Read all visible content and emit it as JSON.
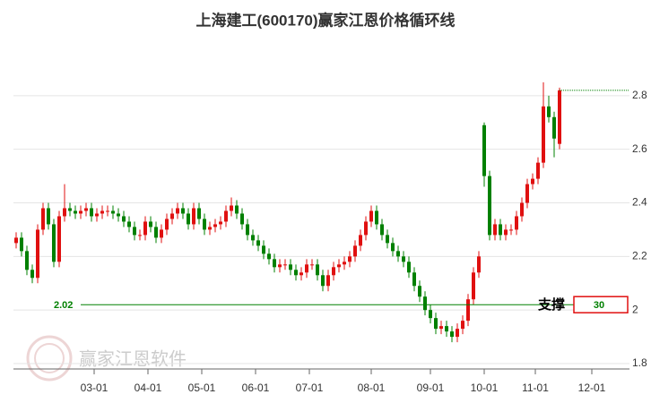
{
  "chart_data": {
    "type": "candlestick",
    "title": "上海建工(600170)赢家江恩价格循环线",
    "watermark": "赢家江恩软件",
    "ylim": [
      1.78,
      2.99
    ],
    "yticks": [
      1.8,
      2,
      2.2,
      2.4,
      2.6,
      2.8
    ],
    "xlim": [
      -0.5,
      113.5
    ],
    "xticks": [
      {
        "value": 14.5,
        "label": "03-01"
      },
      {
        "value": 24.5,
        "label": "04-01"
      },
      {
        "value": 34.5,
        "label": "05-01"
      },
      {
        "value": 44.5,
        "label": "06-01"
      },
      {
        "value": 54.5,
        "label": "07-01"
      },
      {
        "value": 66,
        "label": "08-01"
      },
      {
        "value": 77,
        "label": "09-01"
      },
      {
        "value": 87,
        "label": "10-01"
      },
      {
        "value": 96.5,
        "label": "11-01"
      },
      {
        "value": 107,
        "label": "12-01"
      }
    ],
    "grid": true,
    "up_color": "#e01010",
    "down_color": "#008000",
    "open": [
      2.25,
      2.27,
      2.22,
      2.15,
      2.12,
      2.3,
      2.38,
      2.32,
      2.18,
      2.35,
      2.38,
      2.37,
      2.36,
      2.37,
      2.38,
      2.35,
      2.36,
      2.37,
      2.37,
      2.36,
      2.35,
      2.33,
      2.31,
      2.28,
      2.28,
      2.33,
      2.31,
      2.27,
      2.3,
      2.34,
      2.36,
      2.38,
      2.36,
      2.32,
      2.38,
      2.34,
      2.3,
      2.31,
      2.32,
      2.33,
      2.37,
      2.39,
      2.36,
      2.32,
      2.28,
      2.26,
      2.24,
      2.21,
      2.19,
      2.16,
      2.17,
      2.17,
      2.15,
      2.13,
      2.14,
      2.17,
      2.17,
      2.13,
      2.09,
      2.13,
      2.16,
      2.17,
      2.18,
      2.2,
      2.24,
      2.28,
      2.33,
      2.37,
      2.32,
      2.28,
      2.25,
      2.22,
      2.2,
      2.18,
      2.14,
      2.09,
      2.05,
      2.0,
      1.97,
      1.93,
      1.94,
      1.92,
      1.9,
      1.93,
      1.96,
      2.04,
      2.14,
      2.69,
      2.5,
      2.28,
      2.32,
      2.28,
      2.3,
      2.3,
      2.35,
      2.4,
      2.47,
      2.49,
      2.55,
      2.76,
      2.72,
      2.62
    ],
    "high": [
      2.29,
      2.29,
      2.24,
      2.17,
      2.32,
      2.4,
      2.4,
      2.34,
      2.37,
      2.47,
      2.4,
      2.39,
      2.39,
      2.4,
      2.4,
      2.38,
      2.39,
      2.39,
      2.39,
      2.38,
      2.37,
      2.35,
      2.33,
      2.3,
      2.35,
      2.35,
      2.33,
      2.32,
      2.36,
      2.38,
      2.4,
      2.4,
      2.38,
      2.4,
      2.4,
      2.36,
      2.33,
      2.34,
      2.35,
      2.39,
      2.42,
      2.41,
      2.38,
      2.34,
      2.3,
      2.28,
      2.26,
      2.23,
      2.21,
      2.19,
      2.19,
      2.19,
      2.17,
      2.16,
      2.19,
      2.19,
      2.19,
      2.15,
      2.15,
      2.18,
      2.19,
      2.2,
      2.22,
      2.26,
      2.3,
      2.35,
      2.39,
      2.39,
      2.34,
      2.3,
      2.27,
      2.24,
      2.22,
      2.2,
      2.16,
      2.11,
      2.07,
      2.02,
      1.99,
      1.96,
      1.96,
      1.94,
      1.95,
      1.98,
      2.06,
      2.16,
      2.22,
      2.7,
      2.52,
      2.34,
      2.34,
      2.32,
      2.32,
      2.37,
      2.42,
      2.49,
      2.51,
      2.57,
      2.85,
      2.8,
      2.74,
      2.83
    ],
    "low": [
      2.23,
      2.2,
      2.13,
      2.1,
      2.1,
      2.28,
      2.3,
      2.16,
      2.16,
      2.33,
      2.35,
      2.34,
      2.34,
      2.35,
      2.33,
      2.33,
      2.34,
      2.35,
      2.34,
      2.33,
      2.31,
      2.29,
      2.26,
      2.26,
      2.26,
      2.29,
      2.25,
      2.25,
      2.28,
      2.32,
      2.34,
      2.34,
      2.3,
      2.3,
      2.32,
      2.28,
      2.28,
      2.29,
      2.3,
      2.31,
      2.35,
      2.34,
      2.3,
      2.26,
      2.24,
      2.22,
      2.19,
      2.17,
      2.14,
      2.14,
      2.15,
      2.13,
      2.11,
      2.11,
      2.12,
      2.15,
      2.11,
      2.07,
      2.07,
      2.11,
      2.14,
      2.15,
      2.16,
      2.18,
      2.22,
      2.26,
      2.31,
      2.3,
      2.26,
      2.23,
      2.2,
      2.18,
      2.16,
      2.12,
      2.07,
      2.03,
      1.98,
      1.95,
      1.91,
      1.91,
      1.9,
      1.88,
      1.88,
      1.91,
      1.94,
      2.02,
      2.12,
      2.46,
      2.26,
      2.26,
      2.26,
      2.26,
      2.28,
      2.28,
      2.33,
      2.38,
      2.45,
      2.47,
      2.53,
      2.7,
      2.57,
      2.6
    ],
    "close": [
      2.27,
      2.22,
      2.15,
      2.12,
      2.3,
      2.38,
      2.32,
      2.18,
      2.35,
      2.38,
      2.37,
      2.36,
      2.37,
      2.38,
      2.35,
      2.36,
      2.37,
      2.37,
      2.36,
      2.35,
      2.33,
      2.31,
      2.28,
      2.28,
      2.33,
      2.31,
      2.27,
      2.3,
      2.34,
      2.36,
      2.38,
      2.36,
      2.32,
      2.38,
      2.34,
      2.3,
      2.31,
      2.32,
      2.33,
      2.37,
      2.39,
      2.36,
      2.32,
      2.28,
      2.26,
      2.24,
      2.21,
      2.19,
      2.16,
      2.17,
      2.17,
      2.15,
      2.13,
      2.14,
      2.17,
      2.17,
      2.13,
      2.09,
      2.13,
      2.16,
      2.17,
      2.18,
      2.2,
      2.24,
      2.28,
      2.33,
      2.37,
      2.32,
      2.28,
      2.25,
      2.22,
      2.2,
      2.18,
      2.14,
      2.09,
      2.05,
      2.0,
      1.97,
      1.93,
      1.94,
      1.92,
      1.9,
      1.93,
      1.96,
      2.04,
      2.14,
      2.2,
      2.5,
      2.28,
      2.32,
      2.28,
      2.3,
      2.3,
      2.35,
      2.4,
      2.47,
      2.49,
      2.55,
      2.76,
      2.72,
      2.64,
      2.82
    ],
    "support": {
      "name": "支撑",
      "value": 2.02,
      "value_label": "2.02",
      "box_label": "30",
      "color": "#008000",
      "box_color": "#e01010"
    },
    "resistance": {
      "value": 2.82,
      "color": "#008000"
    }
  }
}
